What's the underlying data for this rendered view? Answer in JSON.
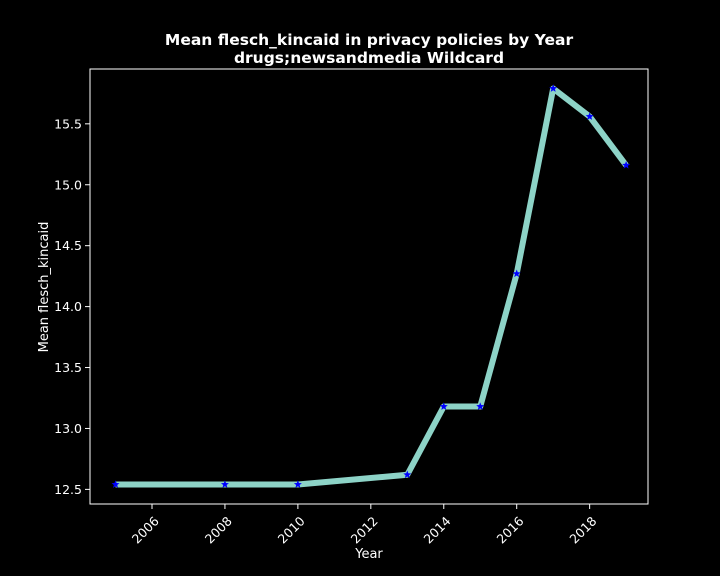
{
  "chart_data": {
    "type": "line",
    "title_line1": "Mean flesch_kincaid in privacy policies by Year",
    "title_line2": "drugs;newsandmedia Wildcard",
    "xlabel": "Year",
    "ylabel": "Mean flesch_kincaid",
    "xlim": [
      2004.3,
      2019.6
    ],
    "ylim": [
      12.38,
      15.95
    ],
    "x_ticks": [
      2006,
      2008,
      2010,
      2012,
      2014,
      2016,
      2018
    ],
    "y_ticks": [
      12.5,
      13.0,
      13.5,
      14.0,
      14.5,
      15.0,
      15.5
    ],
    "x_tick_labels": [
      "2006",
      "2008",
      "2010",
      "2012",
      "2014",
      "2016",
      "2018"
    ],
    "y_tick_labels": [
      "12.5",
      "13.0",
      "13.5",
      "14.0",
      "14.5",
      "15.0",
      "15.5"
    ],
    "grid": false,
    "line_color": "#8dd3c7",
    "marker_color": "#0000ff",
    "marker": "star",
    "series": [
      {
        "x": [
          2005,
          2008,
          2010,
          2013,
          2014,
          2015,
          2016,
          2017,
          2018,
          2019
        ],
        "y": [
          12.54,
          12.54,
          12.54,
          12.62,
          13.18,
          13.18,
          14.27,
          15.79,
          15.56,
          15.16
        ]
      }
    ]
  }
}
